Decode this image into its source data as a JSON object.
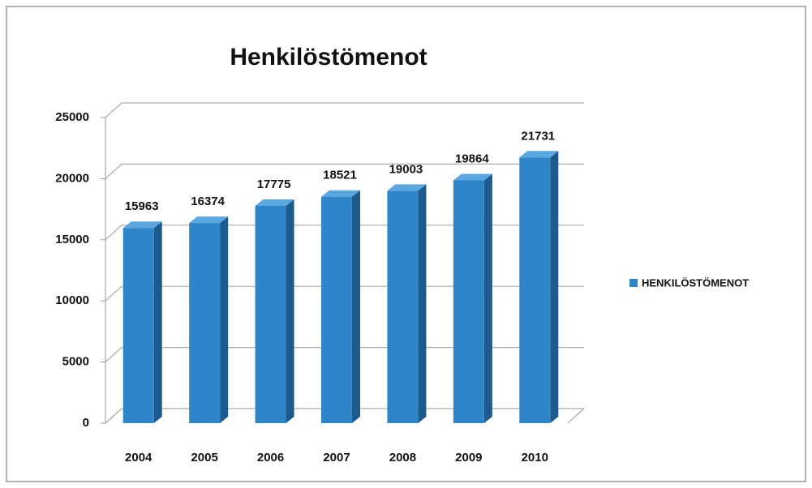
{
  "chart_data": {
    "type": "bar3d",
    "title": "Henkilöstömenot",
    "categories": [
      "2004",
      "2005",
      "2006",
      "2007",
      "2008",
      "2009",
      "2010"
    ],
    "series": [
      {
        "name": "HENKILÖSTÖMENOT",
        "color": "#2e86c9",
        "values": [
          15963,
          16374,
          17775,
          18521,
          19003,
          19864,
          21731
        ]
      }
    ],
    "ylim": [
      0,
      25000
    ],
    "yticks": [
      0,
      5000,
      10000,
      15000,
      20000,
      25000
    ],
    "grid": true,
    "legend": "right"
  }
}
